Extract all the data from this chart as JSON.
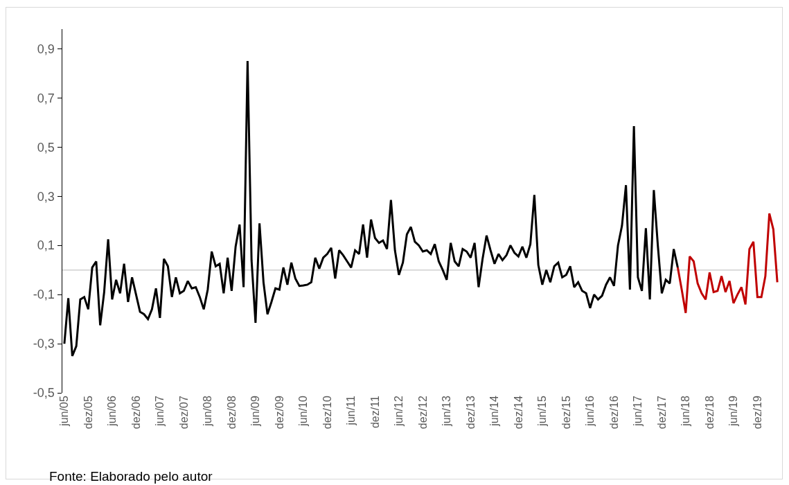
{
  "chart_data": {
    "type": "line",
    "categories": [
      "jun/05",
      null,
      null,
      null,
      null,
      null,
      "dez/05",
      null,
      null,
      null,
      null,
      null,
      "jun/06",
      null,
      null,
      null,
      null,
      null,
      "dez/06",
      null,
      null,
      null,
      null,
      null,
      "jun/07",
      null,
      null,
      null,
      null,
      null,
      "dez/07",
      null,
      null,
      null,
      null,
      null,
      "jun/08",
      null,
      null,
      null,
      null,
      null,
      "dez/08",
      null,
      null,
      null,
      null,
      null,
      "jun/09",
      null,
      null,
      null,
      null,
      null,
      "dez/09",
      null,
      null,
      null,
      null,
      null,
      "jun/10",
      null,
      null,
      null,
      null,
      null,
      "dez/10",
      null,
      null,
      null,
      null,
      null,
      "jun/11",
      null,
      null,
      null,
      null,
      null,
      "dez/11",
      null,
      null,
      null,
      null,
      null,
      "jun/12",
      null,
      null,
      null,
      null,
      null,
      "dez/12",
      null,
      null,
      null,
      null,
      null,
      "jun/13",
      null,
      null,
      null,
      null,
      null,
      "dez/13",
      null,
      null,
      null,
      null,
      null,
      "jun/14",
      null,
      null,
      null,
      null,
      null,
      "dez/14",
      null,
      null,
      null,
      null,
      null,
      "jun/15",
      null,
      null,
      null,
      null,
      null,
      "dez/15",
      null,
      null,
      null,
      null,
      null,
      "jun/16",
      null,
      null,
      null,
      null,
      null,
      "dez/16",
      null,
      null,
      null,
      null,
      null,
      "jun/17",
      null,
      null,
      null,
      null,
      null,
      "dez/17",
      null,
      null,
      null,
      null,
      null,
      "jun/18",
      null,
      null,
      null,
      null,
      null,
      "dez/18",
      null,
      null,
      null,
      null,
      null,
      "jun/19",
      null,
      null,
      null,
      null,
      null,
      "dez/19",
      null,
      null,
      null,
      null,
      null
    ],
    "series": [
      {
        "color": "#000000",
        "values": [
          -0.3,
          -0.115,
          -0.35,
          -0.31,
          -0.12,
          -0.11,
          -0.16,
          0.01,
          0.035,
          -0.225,
          -0.09,
          0.125,
          -0.12,
          -0.04,
          -0.095,
          0.025,
          -0.13,
          -0.03,
          -0.1,
          -0.17,
          -0.18,
          -0.2,
          -0.16,
          -0.075,
          -0.195,
          0.045,
          0.015,
          -0.11,
          -0.03,
          -0.095,
          -0.085,
          -0.045,
          -0.075,
          -0.07,
          -0.11,
          -0.16,
          -0.08,
          0.075,
          0.015,
          0.025,
          -0.095,
          0.05,
          -0.085,
          0.095,
          0.185,
          -0.07,
          0.85,
          0.04,
          -0.215,
          0.19,
          -0.05,
          -0.18,
          -0.13,
          -0.075,
          -0.08,
          0.01,
          -0.06,
          0.03,
          -0.035,
          -0.065,
          -0.063,
          -0.06,
          -0.05,
          0.05,
          0.005,
          0.05,
          0.065,
          0.09,
          -0.035,
          0.08,
          0.06,
          0.035,
          0.01,
          0.08,
          0.065,
          0.185,
          0.05,
          0.205,
          0.13,
          0.11,
          0.12,
          0.085,
          0.285,
          0.08,
          -0.02,
          0.03,
          0.145,
          0.175,
          0.115,
          0.1,
          0.075,
          0.08,
          0.065,
          0.105,
          0.035,
          0.0,
          -0.04,
          0.11,
          0.035,
          0.015,
          0.085,
          0.075,
          0.05,
          0.11,
          -0.07,
          0.045,
          0.14,
          0.08,
          0.025,
          0.065,
          0.04,
          0.06,
          0.1,
          0.07,
          0.055,
          0.095,
          0.05,
          0.105,
          0.305,
          0.02,
          -0.06,
          0.0,
          -0.05,
          0.015,
          0.03,
          -0.03,
          -0.02,
          0.015,
          -0.07,
          -0.05,
          -0.085,
          -0.095,
          -0.155,
          -0.1,
          -0.12,
          -0.105,
          -0.06,
          -0.03,
          -0.065,
          0.1,
          0.18,
          0.345,
          -0.08,
          0.585,
          -0.03,
          -0.085,
          0.17,
          -0.12,
          0.325,
          0.1,
          -0.095,
          -0.04,
          -0.055,
          0.085,
          0.01,
          null,
          null,
          null,
          null,
          null,
          null,
          null,
          null,
          null,
          null,
          null,
          null,
          null,
          null,
          null,
          null,
          null,
          null,
          null,
          null,
          null,
          null,
          null,
          null,
          null
        ]
      },
      {
        "color": "#c00000",
        "values": [
          null,
          null,
          null,
          null,
          null,
          null,
          null,
          null,
          null,
          null,
          null,
          null,
          null,
          null,
          null,
          null,
          null,
          null,
          null,
          null,
          null,
          null,
          null,
          null,
          null,
          null,
          null,
          null,
          null,
          null,
          null,
          null,
          null,
          null,
          null,
          null,
          null,
          null,
          null,
          null,
          null,
          null,
          null,
          null,
          null,
          null,
          null,
          null,
          null,
          null,
          null,
          null,
          null,
          null,
          null,
          null,
          null,
          null,
          null,
          null,
          null,
          null,
          null,
          null,
          null,
          null,
          null,
          null,
          null,
          null,
          null,
          null,
          null,
          null,
          null,
          null,
          null,
          null,
          null,
          null,
          null,
          null,
          null,
          null,
          null,
          null,
          null,
          null,
          null,
          null,
          null,
          null,
          null,
          null,
          null,
          null,
          null,
          null,
          null,
          null,
          null,
          null,
          null,
          null,
          null,
          null,
          null,
          null,
          null,
          null,
          null,
          null,
          null,
          null,
          null,
          null,
          null,
          null,
          null,
          null,
          null,
          null,
          null,
          null,
          null,
          null,
          null,
          null,
          null,
          null,
          null,
          null,
          null,
          null,
          null,
          null,
          null,
          null,
          null,
          null,
          null,
          null,
          null,
          null,
          null,
          null,
          null,
          null,
          null,
          null,
          null,
          null,
          null,
          null,
          0.01,
          -0.08,
          -0.175,
          0.055,
          0.035,
          -0.055,
          -0.095,
          -0.12,
          -0.01,
          -0.09,
          -0.085,
          -0.025,
          -0.09,
          -0.045,
          -0.135,
          -0.1,
          -0.07,
          -0.14,
          0.085,
          0.115,
          -0.11,
          -0.11,
          -0.025,
          0.23,
          0.165,
          -0.05
        ]
      }
    ],
    "ylim": [
      -0.5,
      0.98
    ],
    "yticks": [
      {
        "value": -0.5,
        "label": "-0,5"
      },
      {
        "value": -0.3,
        "label": "-0,3"
      },
      {
        "value": -0.1,
        "label": "-0,1"
      },
      {
        "value": 0.1,
        "label": "0,1"
      },
      {
        "value": 0.3,
        "label": "0,3"
      },
      {
        "value": 0.5,
        "label": "0,5"
      },
      {
        "value": 0.7,
        "label": "0,7"
      },
      {
        "value": 0.9,
        "label": "0,9"
      }
    ],
    "ref_lines": [
      {
        "axis": "y",
        "value": 0,
        "color": "#d9d9d9"
      }
    ],
    "annotations": [
      "Fonte: Elaborado pelo autor"
    ]
  }
}
